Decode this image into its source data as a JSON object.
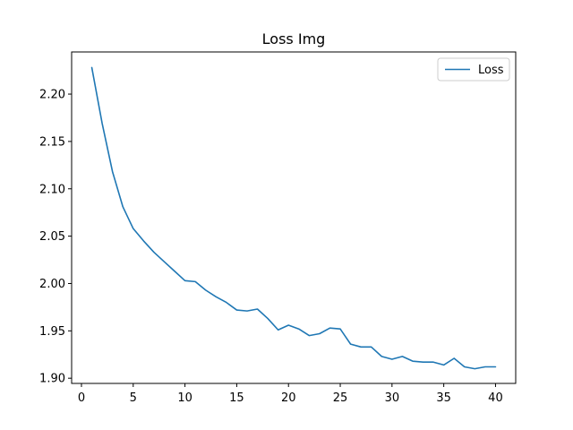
{
  "chart_data": {
    "type": "line",
    "title": "Loss Img",
    "xlabel": "",
    "ylabel": "",
    "xlim": [
      -0.95,
      41.95
    ],
    "ylim": [
      1.8945,
      2.2445
    ],
    "grid": false,
    "legend_position": "top-right",
    "x_ticks": [
      0,
      5,
      10,
      15,
      20,
      25,
      30,
      35,
      40
    ],
    "x_tick_labels": [
      "0",
      "5",
      "10",
      "15",
      "20",
      "25",
      "30",
      "35",
      "40"
    ],
    "y_ticks": [
      1.9,
      1.95,
      2.0,
      2.05,
      2.1,
      2.15,
      2.2
    ],
    "y_tick_labels": [
      "1.90",
      "1.95",
      "2.00",
      "2.05",
      "2.10",
      "2.15",
      "2.20"
    ],
    "series": [
      {
        "name": "Loss",
        "color": "#1f77b4",
        "x": [
          1,
          2,
          3,
          4,
          5,
          6,
          7,
          8,
          9,
          10,
          11,
          12,
          13,
          14,
          15,
          16,
          17,
          18,
          19,
          20,
          21,
          22,
          23,
          24,
          25,
          26,
          27,
          28,
          29,
          30,
          31,
          32,
          33,
          34,
          35,
          36,
          37,
          38,
          39,
          40
        ],
        "y": [
          2.228,
          2.169,
          2.118,
          2.081,
          2.058,
          2.045,
          2.033,
          2.023,
          2.013,
          2.003,
          2.002,
          1.993,
          1.986,
          1.98,
          1.972,
          1.971,
          1.973,
          1.963,
          1.951,
          1.956,
          1.952,
          1.945,
          1.947,
          1.953,
          1.952,
          1.936,
          1.933,
          1.933,
          1.923,
          1.92,
          1.923,
          1.918,
          1.917,
          1.917,
          1.914,
          1.921,
          1.912,
          1.91,
          1.912,
          1.912
        ]
      }
    ]
  }
}
